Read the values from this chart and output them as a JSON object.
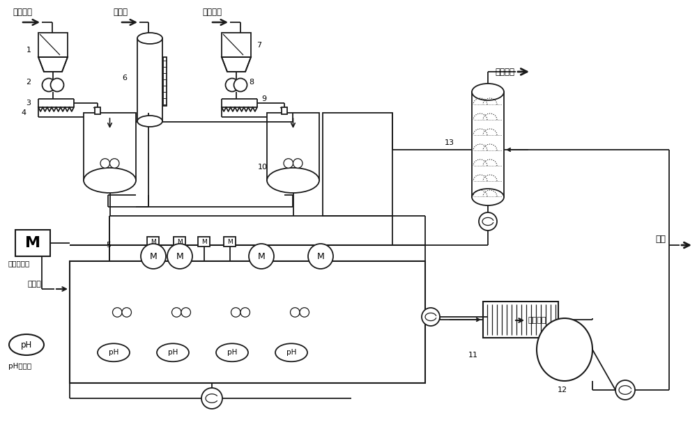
{
  "bg_color": "#ffffff",
  "lc": "#1a1a1a",
  "labels": {
    "shihui_powder": "石灰石粉",
    "waste_acid": "废硫酸",
    "raw_lime": "生石灰粉",
    "tail_gas": "尾气放空",
    "em_flow": "电磁流量计",
    "crystal": "转晶剂",
    "dihydrate": "二水石膏",
    "drain": "排水",
    "ph_online": "pH在线以",
    "num1": "1",
    "num2": "2",
    "num3": "3",
    "num4": "4",
    "num5": "5",
    "num6": "6",
    "num7": "7",
    "num8": "8",
    "num9": "9",
    "num10": "10",
    "num11": "11",
    "num12": "12",
    "num13": "13"
  }
}
